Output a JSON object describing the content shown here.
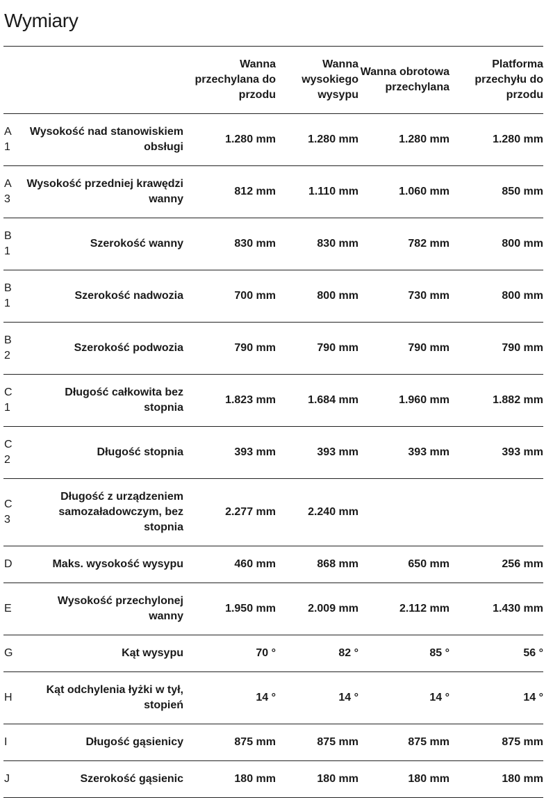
{
  "title": "Wymiary",
  "columns": [
    "Wanna przechylana do przodu",
    "Wanna wysokiego wysypu",
    "Wanna obrotowa przechylana",
    "Platforma przechyłu do przodu"
  ],
  "rows": [
    {
      "code": "A 1",
      "label": "Wysokość nad stanowiskiem obsługi",
      "values": [
        "1.280 mm",
        "1.280 mm",
        "1.280 mm",
        "1.280 mm"
      ]
    },
    {
      "code": "A 3",
      "label": "Wysokość przedniej krawędzi wanny",
      "values": [
        "812 mm",
        "1.110 mm",
        "1.060 mm",
        "850 mm"
      ]
    },
    {
      "code": "B 1",
      "label": "Szerokość wanny",
      "values": [
        "830 mm",
        "830 mm",
        "782 mm",
        "800 mm"
      ]
    },
    {
      "code": "B 1",
      "label": "Szerokość nadwozia",
      "values": [
        "700 mm",
        "800 mm",
        "730 mm",
        "800 mm"
      ]
    },
    {
      "code": "B 2",
      "label": "Szerokość podwozia",
      "values": [
        "790 mm",
        "790 mm",
        "790 mm",
        "790 mm"
      ]
    },
    {
      "code": "C 1",
      "label": "Długość całkowita bez stopnia",
      "values": [
        "1.823 mm",
        "1.684 mm",
        "1.960 mm",
        "1.882 mm"
      ]
    },
    {
      "code": "C 2",
      "label": "Długość stopnia",
      "values": [
        "393 mm",
        "393 mm",
        "393 mm",
        "393 mm"
      ]
    },
    {
      "code": "C 3",
      "label": "Długość z urządzeniem samozaładowczym, bez stopnia",
      "values": [
        "2.277 mm",
        "2.240 mm",
        "",
        ""
      ]
    },
    {
      "code": "D",
      "label": "Maks. wysokość wysypu",
      "values": [
        "460 mm",
        "868 mm",
        "650 mm",
        "256 mm"
      ]
    },
    {
      "code": "E",
      "label": "Wysokość przechylonej wanny",
      "values": [
        "1.950 mm",
        "2.009 mm",
        "2.112 mm",
        "1.430 mm"
      ]
    },
    {
      "code": "G",
      "label": "Kąt wysypu",
      "values": [
        "70 °",
        "82 °",
        "85 °",
        "56 °"
      ]
    },
    {
      "code": "H",
      "label": "Kąt odchylenia łyżki w tył, stopień",
      "values": [
        "14 °",
        "14 °",
        "14 °",
        "14 °"
      ]
    },
    {
      "code": "I",
      "label": "Długość gąsienicy",
      "values": [
        "875 mm",
        "875 mm",
        "875 mm",
        "875 mm"
      ]
    },
    {
      "code": "J",
      "label": "Szerokość gąsienic",
      "values": [
        "180 mm",
        "180 mm",
        "180 mm",
        "180 mm"
      ]
    }
  ]
}
